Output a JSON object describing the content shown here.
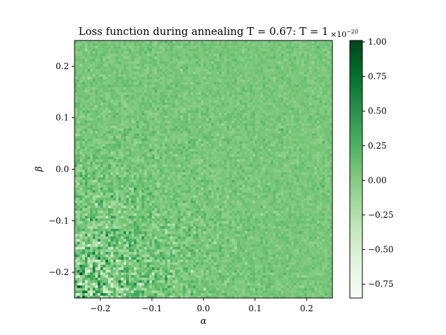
{
  "chart_data": {
    "type": "heatmap",
    "title": "Loss function during annealing T = 0.67: T = 1",
    "xlabel": "α",
    "ylabel": "β",
    "xlim": [
      -0.25,
      0.25
    ],
    "ylim": [
      -0.25,
      0.25
    ],
    "x_ticks": [
      -0.2,
      -0.1,
      0.0,
      0.1,
      0.2
    ],
    "x_tick_labels": [
      "−0.2",
      "−0.1",
      "0.0",
      "0.1",
      "0.2"
    ],
    "y_ticks": [
      -0.2,
      -0.1,
      0.0,
      0.1,
      0.2
    ],
    "y_tick_labels": [
      "−0.2",
      "−0.1",
      "0.0",
      "0.1",
      "0.2"
    ],
    "colormap": "Greens",
    "colorbar": {
      "range": [
        -0.85,
        1.01
      ],
      "ticks": [
        -0.75,
        -0.5,
        -0.25,
        0.0,
        0.25,
        0.5,
        0.75,
        1.0
      ],
      "tick_labels": [
        "−0.75",
        "−0.50",
        "−0.25",
        "0.00",
        "0.25",
        "0.50",
        "0.75",
        "1.00"
      ],
      "scale_label": "×10",
      "scale_exponent": "−20"
    },
    "grid": {
      "nx": 100,
      "ny": 100
    },
    "background_value": 0.05,
    "noise": "values near 0 over most of the domain; strong alternating noise (amplitude up to ~1.0) concentrated in lower-left region (α < 0, β < 0), increasing toward α = −0.25, β = −0.25"
  }
}
